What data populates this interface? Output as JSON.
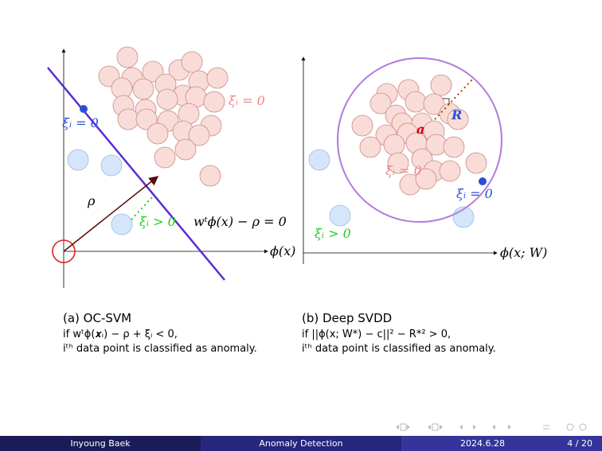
{
  "left": {
    "xi_zero_pink": "ξᵢ = 0",
    "xi_zero_blue": "ξᵢ = 0",
    "rho": "ρ",
    "xi_pos": "ξᵢ > 0",
    "boundary": "wᵗϕ(x) − ρ = 0",
    "axis": "ϕ(x)",
    "caption": {
      "title": "(a) OC-SVM",
      "line1": "if wᵗϕ(𝒙ᵢ) − ρ + ξᵢ < 0,",
      "line2": "iᵗʰ data point is classified as anomaly."
    }
  },
  "right": {
    "radius": "R",
    "center": "a",
    "xi_zero_pink": "ξᵢ = 0",
    "xi_zero_blue": "ξᵢ = 0",
    "xi_pos": "ξᵢ > 0",
    "axis": "ϕ(x; W)",
    "caption": {
      "title": "(b) Deep SVDD",
      "line1": "if ||ϕ(x; W*) − c||² − R*² > 0,",
      "line2": "iᵗʰ data point is classified as anomaly."
    }
  },
  "footer": {
    "author": "Inyoung Baek",
    "title": "Anomaly Detection",
    "date": "2024.6.28",
    "page": "4 / 20"
  }
}
